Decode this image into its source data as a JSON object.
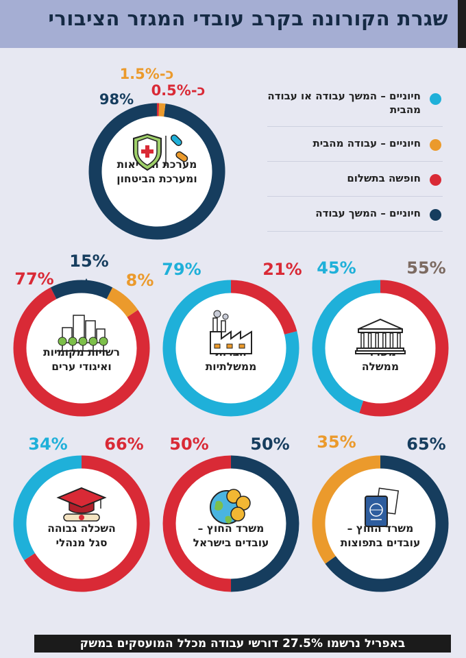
{
  "header": {
    "title": "שגרת הקורונה בקרב עובדי המגזר הציבורי"
  },
  "legend": [
    {
      "label": "חיוניים – המשך עבודה או עבודה מהבית",
      "color_key": "cyan"
    },
    {
      "label": "חיוניים – עבודה מהבית",
      "color_key": "orange"
    },
    {
      "label": "חופשה בתשלום",
      "color_key": "red"
    },
    {
      "label": "חיוניים – המשך עבודה",
      "color_key": "navy"
    }
  ],
  "colors": {
    "cyan": "#1fb0d9",
    "orange": "#eb9a2c",
    "red": "#d92a36",
    "navy": "#163d5e",
    "gray": "#7c6a61"
  },
  "chart_data": [
    {
      "type": "pie",
      "title": "מערכת הבריאות ומערכת הביטחון",
      "icon": "health-shield-pills-icon",
      "series": [
        {
          "name": "חיוניים – המשך עבודה",
          "value": 98,
          "label": "98%",
          "color_key": "navy"
        },
        {
          "name": "חיוניים – עבודה מהבית",
          "value": 1.5,
          "label": "כ-1.5%",
          "color_key": "orange"
        },
        {
          "name": "חופשה בתשלום",
          "value": 0.5,
          "label": "כ-0.5%",
          "color_key": "red"
        }
      ]
    },
    {
      "type": "pie",
      "title": "משרדי ממשלה",
      "icon": "government-building-icon",
      "series": [
        {
          "name": "חופשה בתשלום",
          "value": 55,
          "label": "55%",
          "color_key": "red",
          "label_color_key": "gray"
        },
        {
          "name": "חיוניים – המשך עבודה או עבודה מהבית",
          "value": 45,
          "label": "45%",
          "color_key": "cyan"
        }
      ]
    },
    {
      "type": "pie",
      "title": "חברות ממשלתיות",
      "icon": "factory-icon",
      "series": [
        {
          "name": "חופשה בתשלום",
          "value": 21,
          "label": "21%",
          "color_key": "red"
        },
        {
          "name": "חיוניים – המשך עבודה או עבודה מהבית",
          "value": 79,
          "label": "79%",
          "color_key": "cyan"
        }
      ]
    },
    {
      "type": "pie",
      "title": "רשויות מקומיות ואיגודי ערים",
      "icon": "city-icon",
      "series": [
        {
          "name": "חיוניים – עבודה מהבית",
          "value": 8,
          "label": "8%",
          "color_key": "orange"
        },
        {
          "name": "חופשה בתשלום",
          "value": 77,
          "label": "77%",
          "color_key": "red"
        },
        {
          "name": "חיוניים – המשך עבודה",
          "value": 15,
          "label": "15%",
          "color_key": "navy"
        }
      ]
    },
    {
      "type": "pie",
      "title": "משרד החוץ – עובדים בתפוצות",
      "icon": "passport-icon",
      "series": [
        {
          "name": "חיוניים – המשך עבודה",
          "value": 65,
          "label": "65%",
          "color_key": "navy"
        },
        {
          "name": "חיוניים – עבודה מהבית",
          "value": 35,
          "label": "35%",
          "color_key": "orange"
        }
      ]
    },
    {
      "type": "pie",
      "title": "משרד החוץ – עובדים בישראל",
      "icon": "globe-coins-icon",
      "series": [
        {
          "name": "חיוניים – המשך עבודה",
          "value": 50,
          "label": "50%",
          "color_key": "navy"
        },
        {
          "name": "חופשה בתשלום",
          "value": 50,
          "label": "50%",
          "color_key": "red"
        }
      ]
    },
    {
      "type": "pie",
      "title": "השכלה גבוהה סגל מנהלי",
      "icon": "graduation-cap-icon",
      "series": [
        {
          "name": "חופשה בתשלום",
          "value": 66,
          "label": "66%",
          "color_key": "red"
        },
        {
          "name": "חיוניים – המשך עבודה או עבודה מהבית",
          "value": 34,
          "label": "34%",
          "color_key": "cyan"
        }
      ]
    }
  ],
  "footer": {
    "text": "באפריל נרשמו 27.5% דורשי עבודה מכלל המועסקים במשק"
  }
}
